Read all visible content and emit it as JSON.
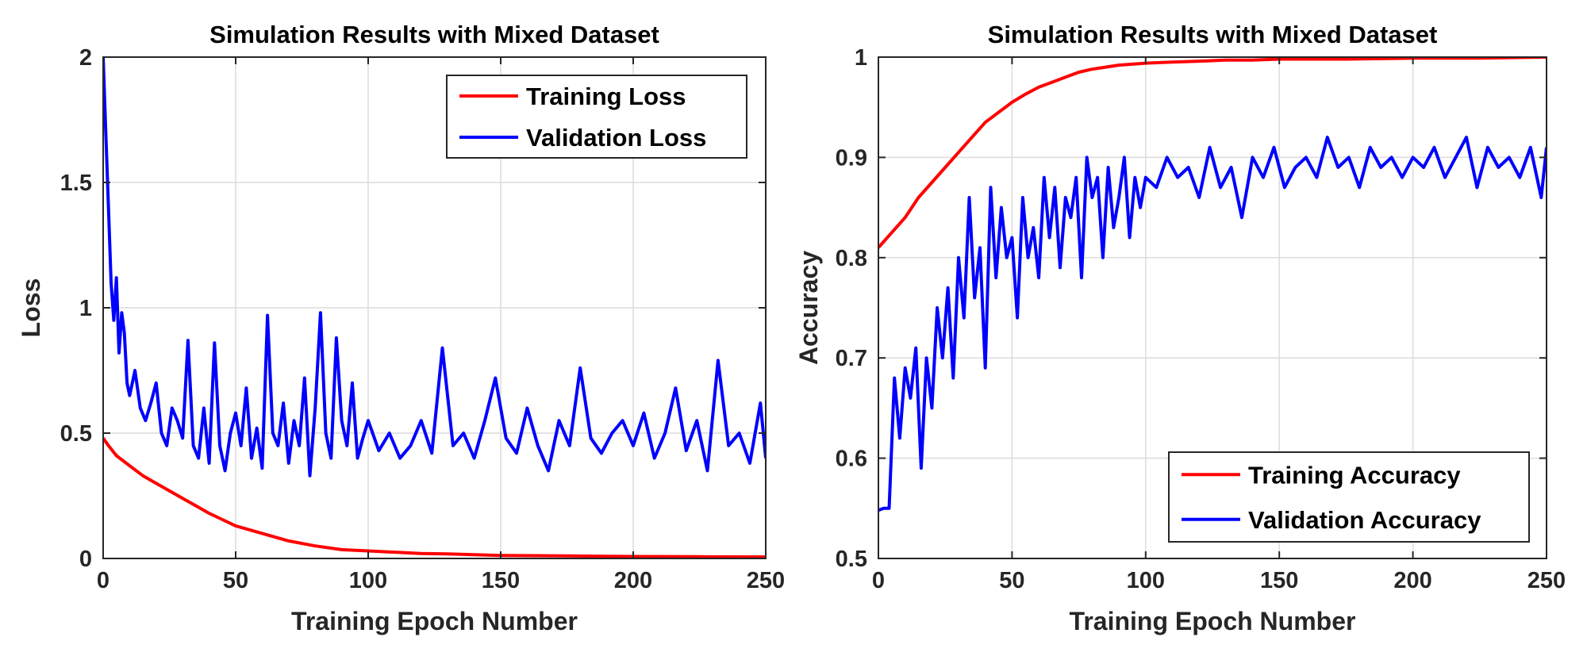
{
  "chart_data": [
    {
      "type": "line",
      "title": "Simulation Results with Mixed Dataset",
      "xlabel": "Training Epoch Number",
      "ylabel": "Loss",
      "xlim": [
        0,
        250
      ],
      "ylim": [
        0,
        2
      ],
      "xticks": [
        "0",
        "50",
        "100",
        "150",
        "200",
        "250"
      ],
      "yticks": [
        "0",
        "0.5",
        "1",
        "1.5",
        "2"
      ],
      "grid": true,
      "legend_position": "top-right",
      "series": [
        {
          "name": "Training Loss",
          "color": "#ff0000",
          "x": [
            0,
            2,
            5,
            10,
            15,
            20,
            25,
            30,
            35,
            40,
            45,
            50,
            60,
            70,
            80,
            90,
            100,
            110,
            120,
            130,
            140,
            150,
            175,
            200,
            225,
            250
          ],
          "y": [
            0.48,
            0.45,
            0.41,
            0.37,
            0.33,
            0.3,
            0.27,
            0.24,
            0.21,
            0.18,
            0.155,
            0.13,
            0.1,
            0.07,
            0.05,
            0.035,
            0.03,
            0.025,
            0.02,
            0.018,
            0.015,
            0.012,
            0.01,
            0.008,
            0.007,
            0.006
          ]
        },
        {
          "name": "Validation Loss",
          "color": "#0000ff",
          "x": [
            0,
            1,
            2,
            3,
            4,
            5,
            6,
            7,
            8,
            9,
            10,
            12,
            14,
            16,
            18,
            20,
            22,
            24,
            26,
            28,
            30,
            32,
            34,
            36,
            38,
            40,
            42,
            44,
            46,
            48,
            50,
            52,
            54,
            56,
            58,
            60,
            62,
            64,
            66,
            68,
            70,
            72,
            74,
            76,
            78,
            80,
            82,
            84,
            86,
            88,
            90,
            92,
            94,
            96,
            98,
            100,
            104,
            108,
            112,
            116,
            120,
            124,
            128,
            132,
            136,
            140,
            144,
            148,
            152,
            156,
            160,
            164,
            168,
            172,
            176,
            180,
            184,
            188,
            192,
            196,
            200,
            204,
            208,
            212,
            216,
            220,
            224,
            228,
            232,
            236,
            240,
            244,
            248,
            250
          ],
          "y": [
            2.0,
            1.7,
            1.4,
            1.1,
            0.95,
            1.12,
            0.82,
            0.98,
            0.9,
            0.7,
            0.65,
            0.75,
            0.6,
            0.55,
            0.62,
            0.7,
            0.5,
            0.45,
            0.6,
            0.55,
            0.48,
            0.87,
            0.45,
            0.4,
            0.6,
            0.38,
            0.86,
            0.45,
            0.35,
            0.5,
            0.58,
            0.45,
            0.68,
            0.4,
            0.52,
            0.36,
            0.97,
            0.5,
            0.45,
            0.62,
            0.38,
            0.55,
            0.45,
            0.72,
            0.33,
            0.6,
            0.98,
            0.5,
            0.4,
            0.88,
            0.55,
            0.45,
            0.7,
            0.4,
            0.48,
            0.55,
            0.43,
            0.5,
            0.4,
            0.45,
            0.55,
            0.42,
            0.84,
            0.45,
            0.5,
            0.4,
            0.55,
            0.72,
            0.48,
            0.42,
            0.6,
            0.45,
            0.35,
            0.55,
            0.45,
            0.76,
            0.48,
            0.42,
            0.5,
            0.55,
            0.45,
            0.58,
            0.4,
            0.5,
            0.68,
            0.43,
            0.55,
            0.35,
            0.79,
            0.45,
            0.5,
            0.38,
            0.62,
            0.4
          ]
        }
      ]
    },
    {
      "type": "line",
      "title": "Simulation Results with Mixed Dataset",
      "xlabel": "Training Epoch Number",
      "ylabel": "Accuracy",
      "xlim": [
        0,
        250
      ],
      "ylim": [
        0.5,
        1
      ],
      "xticks": [
        "0",
        "50",
        "100",
        "150",
        "200",
        "250"
      ],
      "yticks": [
        "0.5",
        "0.6",
        "0.7",
        "0.8",
        "0.9",
        "1"
      ],
      "grid": true,
      "legend_position": "bottom-right",
      "series": [
        {
          "name": "Training Accuracy",
          "color": "#ff0000",
          "x": [
            0,
            5,
            10,
            15,
            20,
            25,
            30,
            35,
            40,
            45,
            50,
            55,
            60,
            65,
            70,
            75,
            80,
            90,
            100,
            110,
            120,
            130,
            140,
            150,
            175,
            200,
            225,
            250
          ],
          "y": [
            0.81,
            0.825,
            0.84,
            0.86,
            0.875,
            0.89,
            0.905,
            0.92,
            0.935,
            0.945,
            0.955,
            0.963,
            0.97,
            0.975,
            0.98,
            0.985,
            0.988,
            0.992,
            0.994,
            0.995,
            0.996,
            0.997,
            0.997,
            0.998,
            0.998,
            0.999,
            0.999,
            1.0
          ]
        },
        {
          "name": "Validation Accuracy",
          "color": "#0000ff",
          "x": [
            0,
            2,
            4,
            6,
            8,
            10,
            12,
            14,
            16,
            18,
            20,
            22,
            24,
            26,
            28,
            30,
            32,
            34,
            36,
            38,
            40,
            42,
            44,
            46,
            48,
            50,
            52,
            54,
            56,
            58,
            60,
            62,
            64,
            66,
            68,
            70,
            72,
            74,
            76,
            78,
            80,
            82,
            84,
            86,
            88,
            90,
            92,
            94,
            96,
            98,
            100,
            104,
            108,
            112,
            116,
            120,
            124,
            128,
            132,
            136,
            140,
            144,
            148,
            152,
            156,
            160,
            164,
            168,
            172,
            176,
            180,
            184,
            188,
            192,
            196,
            200,
            204,
            208,
            212,
            216,
            220,
            224,
            228,
            232,
            236,
            240,
            244,
            248,
            250
          ],
          "y": [
            0.548,
            0.55,
            0.55,
            0.68,
            0.62,
            0.69,
            0.66,
            0.71,
            0.59,
            0.7,
            0.65,
            0.75,
            0.7,
            0.77,
            0.68,
            0.8,
            0.74,
            0.86,
            0.76,
            0.81,
            0.69,
            0.87,
            0.78,
            0.85,
            0.8,
            0.82,
            0.74,
            0.86,
            0.8,
            0.83,
            0.78,
            0.88,
            0.82,
            0.87,
            0.79,
            0.86,
            0.84,
            0.88,
            0.78,
            0.9,
            0.86,
            0.88,
            0.8,
            0.89,
            0.83,
            0.86,
            0.9,
            0.82,
            0.88,
            0.85,
            0.88,
            0.87,
            0.9,
            0.88,
            0.89,
            0.86,
            0.91,
            0.87,
            0.89,
            0.84,
            0.9,
            0.88,
            0.91,
            0.87,
            0.89,
            0.9,
            0.88,
            0.92,
            0.89,
            0.9,
            0.87,
            0.91,
            0.89,
            0.9,
            0.88,
            0.9,
            0.89,
            0.91,
            0.88,
            0.9,
            0.92,
            0.87,
            0.91,
            0.89,
            0.9,
            0.88,
            0.91,
            0.86,
            0.91
          ]
        }
      ]
    }
  ]
}
